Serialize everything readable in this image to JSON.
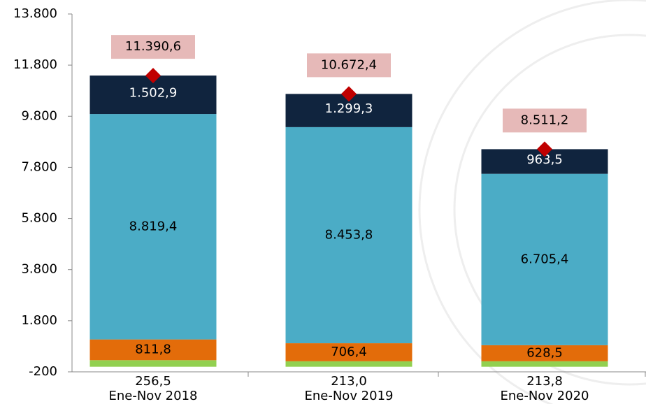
{
  "chart_data": {
    "type": "stacked_bar",
    "categories": [
      "Ene-Nov 2018",
      "Ene-Nov 2019",
      "Ene-Nov 2020"
    ],
    "series": [
      {
        "color": "#92d050",
        "label_color": "#000000",
        "values": [
          256.5,
          213.0,
          213.8
        ],
        "value_labels": [
          "256,5",
          "213,0",
          "213,8"
        ]
      },
      {
        "color": "#e36c0a",
        "label_color": "#000000",
        "values": [
          811.8,
          706.4,
          628.5
        ],
        "value_labels": [
          "811,8",
          "706,4",
          "628,5"
        ]
      },
      {
        "color": "#4bacc6",
        "label_color": "#000000",
        "values": [
          8819.4,
          8453.8,
          6705.4
        ],
        "value_labels": [
          "8.819,4",
          "8.453,8",
          "6.705,4"
        ]
      },
      {
        "color": "#10243e",
        "label_color": "#ffffff",
        "values": [
          1502.9,
          1299.3,
          963.5
        ],
        "value_labels": [
          "1.502,9",
          "1.299,3",
          "963,5"
        ]
      }
    ],
    "totals": {
      "color": "#c00000",
      "label_box_color": "#e6b9b8",
      "values": [
        11390.6,
        10672.4,
        8511.2
      ],
      "value_labels": [
        "11.390,6",
        "10.672,4",
        "8.511,2"
      ]
    },
    "ylim": [
      -200,
      13800
    ],
    "yticks": [
      -200,
      {
        "value": 1800,
        "label": "1.800"
      },
      {
        "value": 3800,
        "label": "3.800"
      },
      {
        "value": 5800,
        "label": "5.800"
      },
      {
        "value": 7800,
        "label": "7.800"
      },
      {
        "value": 9800,
        "label": "9.800"
      },
      {
        "value": 11800,
        "label": "11.800"
      },
      {
        "value": 13800,
        "label": "13.800"
      }
    ],
    "grid": false
  }
}
